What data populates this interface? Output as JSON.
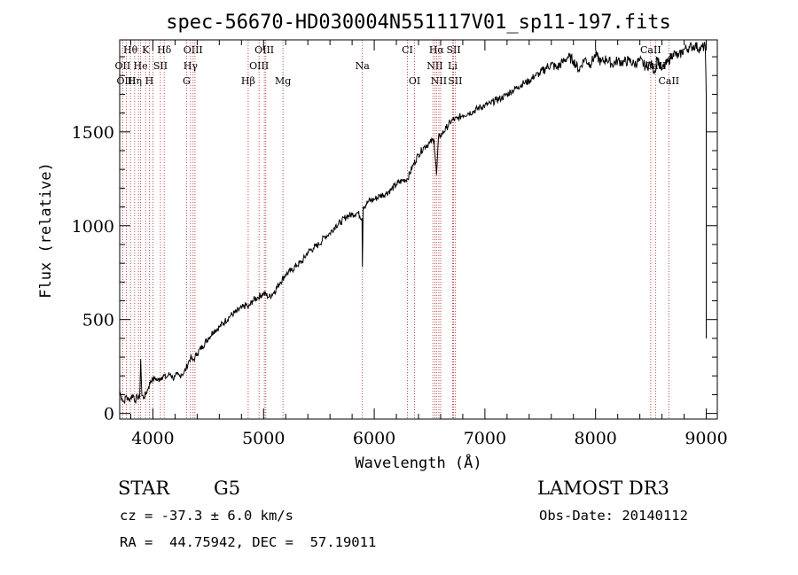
{
  "chart_data": {
    "type": "line",
    "title": "spec-56670-HD030004N551117V01_sp11-197.fits",
    "xlabel": "Wavelength (Å)",
    "ylabel": "Flux (relative)",
    "xlim": [
      3700,
      9100
    ],
    "ylim": [
      -30,
      1990
    ],
    "xticks": [
      4000,
      5000,
      6000,
      7000,
      8000,
      9000
    ],
    "yticks": [
      0,
      500,
      1000,
      1500
    ],
    "grid": false,
    "series": [
      {
        "name": "flux",
        "x": [
          3700,
          3720,
          3740,
          3760,
          3780,
          3800,
          3820,
          3840,
          3860,
          3880,
          3890,
          3900,
          3920,
          3940,
          3960,
          3980,
          4000,
          4020,
          4040,
          4060,
          4080,
          4100,
          4120,
          4140,
          4160,
          4180,
          4200,
          4220,
          4240,
          4260,
          4280,
          4300,
          4320,
          4340,
          4360,
          4380,
          4400,
          4450,
          4500,
          4550,
          4600,
          4650,
          4700,
          4750,
          4800,
          4850,
          4861,
          4900,
          4950,
          5000,
          5050,
          5100,
          5150,
          5200,
          5250,
          5300,
          5350,
          5400,
          5450,
          5500,
          5550,
          5600,
          5650,
          5700,
          5750,
          5800,
          5850,
          5890,
          5893,
          5900,
          5950,
          6000,
          6050,
          6100,
          6150,
          6200,
          6250,
          6300,
          6350,
          6400,
          6450,
          6500,
          6540,
          6563,
          6580,
          6600,
          6650,
          6700,
          6750,
          6800,
          6850,
          6900,
          6950,
          7000,
          7050,
          7100,
          7150,
          7200,
          7250,
          7300,
          7350,
          7400,
          7450,
          7500,
          7550,
          7600,
          7650,
          7700,
          7750,
          7800,
          7850,
          7900,
          7950,
          8000,
          8050,
          8100,
          8150,
          8200,
          8250,
          8300,
          8350,
          8400,
          8450,
          8500,
          8542,
          8550,
          8600,
          8650,
          8700,
          8750,
          8800,
          8850,
          8900,
          8950,
          8990,
          9000
        ],
        "values": [
          120,
          80,
          60,
          95,
          70,
          85,
          100,
          65,
          90,
          80,
          290,
          95,
          85,
          110,
          140,
          175,
          180,
          190,
          175,
          185,
          195,
          200,
          190,
          205,
          210,
          190,
          195,
          205,
          200,
          210,
          215,
          240,
          270,
          300,
          280,
          300,
          320,
          360,
          400,
          440,
          460,
          490,
          520,
          540,
          560,
          580,
          560,
          600,
          620,
          640,
          620,
          650,
          700,
          740,
          760,
          790,
          810,
          860,
          880,
          900,
          940,
          960,
          1000,
          1020,
          1050,
          1060,
          1070,
          1040,
          780,
          1100,
          1130,
          1140,
          1160,
          1170,
          1190,
          1220,
          1240,
          1250,
          1320,
          1380,
          1420,
          1440,
          1460,
          1270,
          1470,
          1480,
          1520,
          1560,
          1570,
          1590,
          1600,
          1610,
          1630,
          1640,
          1650,
          1670,
          1680,
          1700,
          1720,
          1740,
          1760,
          1770,
          1800,
          1810,
          1840,
          1860,
          1840,
          1870,
          1900,
          1880,
          1830,
          1890,
          1860,
          1910,
          1870,
          1890,
          1860,
          1880,
          1870,
          1880,
          1860,
          1880,
          1850,
          1860,
          1820,
          1900,
          1830,
          1870,
          1920,
          1900,
          1940,
          1950,
          1960,
          1940,
          1960,
          1700
        ]
      }
    ],
    "line_markers": [
      {
        "name": "Hθ",
        "wavelength": 3797,
        "row": 0
      },
      {
        "name": "K",
        "wavelength": 3934,
        "row": 0
      },
      {
        "name": "Hδ",
        "wavelength": 4102,
        "row": 0
      },
      {
        "name": "OIII",
        "wavelength": 4363,
        "row": 0
      },
      {
        "name": "OIII",
        "wavelength": 5007,
        "row": 0
      },
      {
        "name": "CI",
        "wavelength": 6300,
        "row": 0
      },
      {
        "name": "Hα",
        "wavelength": 6563,
        "row": 0
      },
      {
        "name": "SII",
        "wavelength": 6717,
        "row": 0
      },
      {
        "name": "CaII",
        "wavelength": 8498,
        "row": 0
      },
      {
        "name": "OII",
        "wavelength": 3727,
        "row": 1
      },
      {
        "name": "He",
        "wavelength": 3889,
        "row": 1
      },
      {
        "name": "SII",
        "wavelength": 4068,
        "row": 1
      },
      {
        "name": "Hγ",
        "wavelength": 4340,
        "row": 1
      },
      {
        "name": "OIII",
        "wavelength": 4959,
        "row": 1
      },
      {
        "name": "Na",
        "wavelength": 5893,
        "row": 1
      },
      {
        "name": "NII",
        "wavelength": 6548,
        "row": 1
      },
      {
        "name": "Li",
        "wavelength": 6708,
        "row": 1
      },
      {
        "name": "CaII",
        "wavelength": 8542,
        "row": 1
      },
      {
        "name": "OIII",
        "wavelength": 3760,
        "row": 2
      },
      {
        "name": "Hη",
        "wavelength": 3835,
        "row": 2
      },
      {
        "name": "H",
        "wavelength": 3968,
        "row": 2
      },
      {
        "name": "G",
        "wavelength": 4304,
        "row": 2
      },
      {
        "name": "Hβ",
        "wavelength": 4861,
        "row": 2
      },
      {
        "name": "Mg",
        "wavelength": 5175,
        "row": 2
      },
      {
        "name": "OI",
        "wavelength": 6364,
        "row": 2
      },
      {
        "name": "NII",
        "wavelength": 6584,
        "row": 2
      },
      {
        "name": "SII",
        "wavelength": 6731,
        "row": 2
      },
      {
        "name": "CaII",
        "wavelength": 8662,
        "row": 2
      }
    ],
    "extra_marker_lines": [
      3870,
      4000,
      4380,
      5020,
      6530,
      6600,
      6720
    ]
  },
  "info": {
    "object_class": "STAR",
    "subclass": "G5",
    "survey": "LAMOST DR3",
    "velocity": "cz = -37.3 ± 6.0 km/s",
    "obs_date": "Obs-Date: 20140112",
    "coords": "RA =  44.75942, DEC =  57.19011"
  },
  "colors": {
    "spectrum": "#000000",
    "marker_line": "#b22222",
    "axis": "#000000",
    "background": "#ffffff"
  }
}
